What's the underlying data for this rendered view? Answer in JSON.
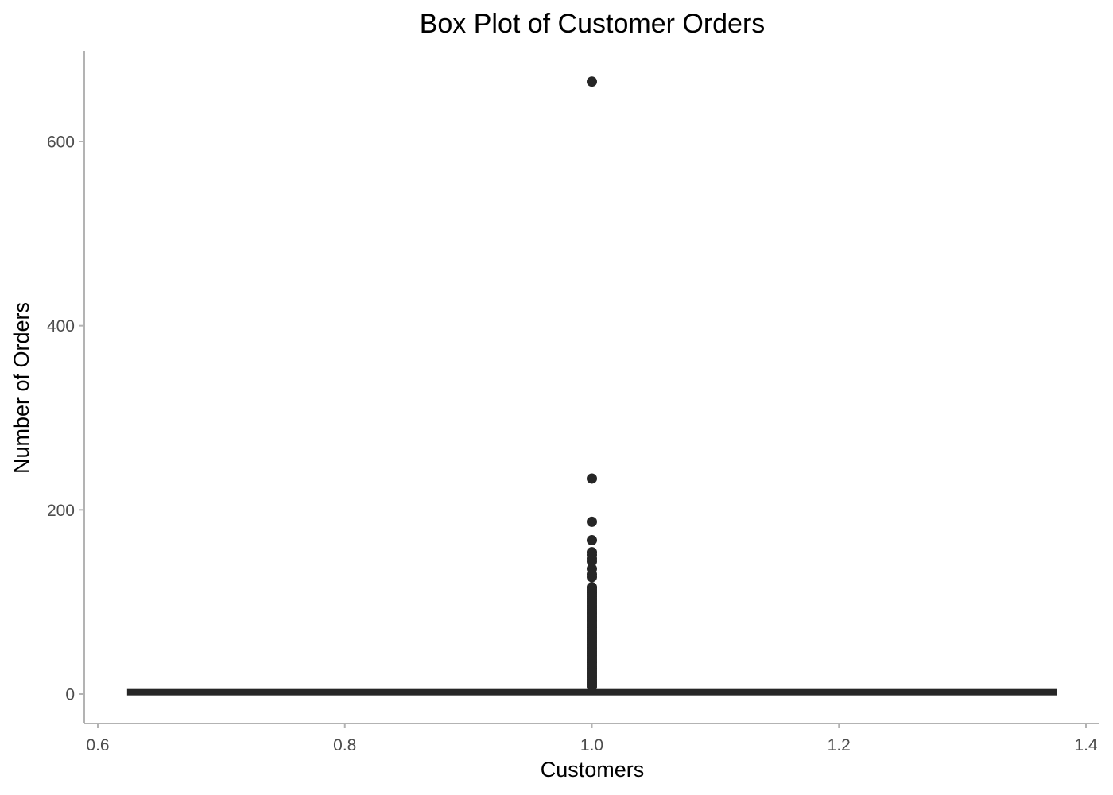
{
  "chart_data": {
    "type": "box",
    "title": "Box Plot of Customer Orders",
    "xlabel": "Customers",
    "ylabel": "Number of Orders",
    "xlim": [
      0.6,
      1.4
    ],
    "ylim": [
      0,
      700
    ],
    "x_ticks": [
      0.6,
      0.8,
      1.0,
      1.2,
      1.4
    ],
    "x_tick_labels": [
      "0.6",
      "0.8",
      "1.0",
      "1.2",
      "1.4"
    ],
    "y_ticks": [
      0,
      200,
      400,
      600
    ],
    "y_tick_labels": [
      "0",
      "200",
      "400",
      "600"
    ],
    "grid": false,
    "box": {
      "x": 1.0,
      "x_from": 0.625,
      "x_to": 1.375,
      "min": 1,
      "q1": 1,
      "median": 2,
      "q3": 3,
      "max": 5
    },
    "outliers": {
      "x": 1.0,
      "values": [
        665,
        234,
        187,
        167,
        154,
        151,
        147,
        144,
        136,
        130,
        127,
        116,
        114,
        112,
        110,
        108,
        106,
        104,
        102,
        100,
        98,
        96,
        94,
        92,
        90,
        88,
        86,
        84,
        82,
        80,
        78,
        76,
        74,
        72,
        70,
        68,
        66,
        64,
        62,
        60,
        58,
        56,
        54,
        52,
        50,
        48,
        46,
        44,
        42,
        40,
        38,
        36,
        34,
        32,
        30,
        28,
        26,
        24,
        22,
        20,
        18,
        16,
        14,
        12,
        10,
        8
      ]
    },
    "colors": {
      "marks": "#262626",
      "axis": "#b3b3b3",
      "tick_label": "#4d4d4d",
      "text": "#000000"
    }
  }
}
